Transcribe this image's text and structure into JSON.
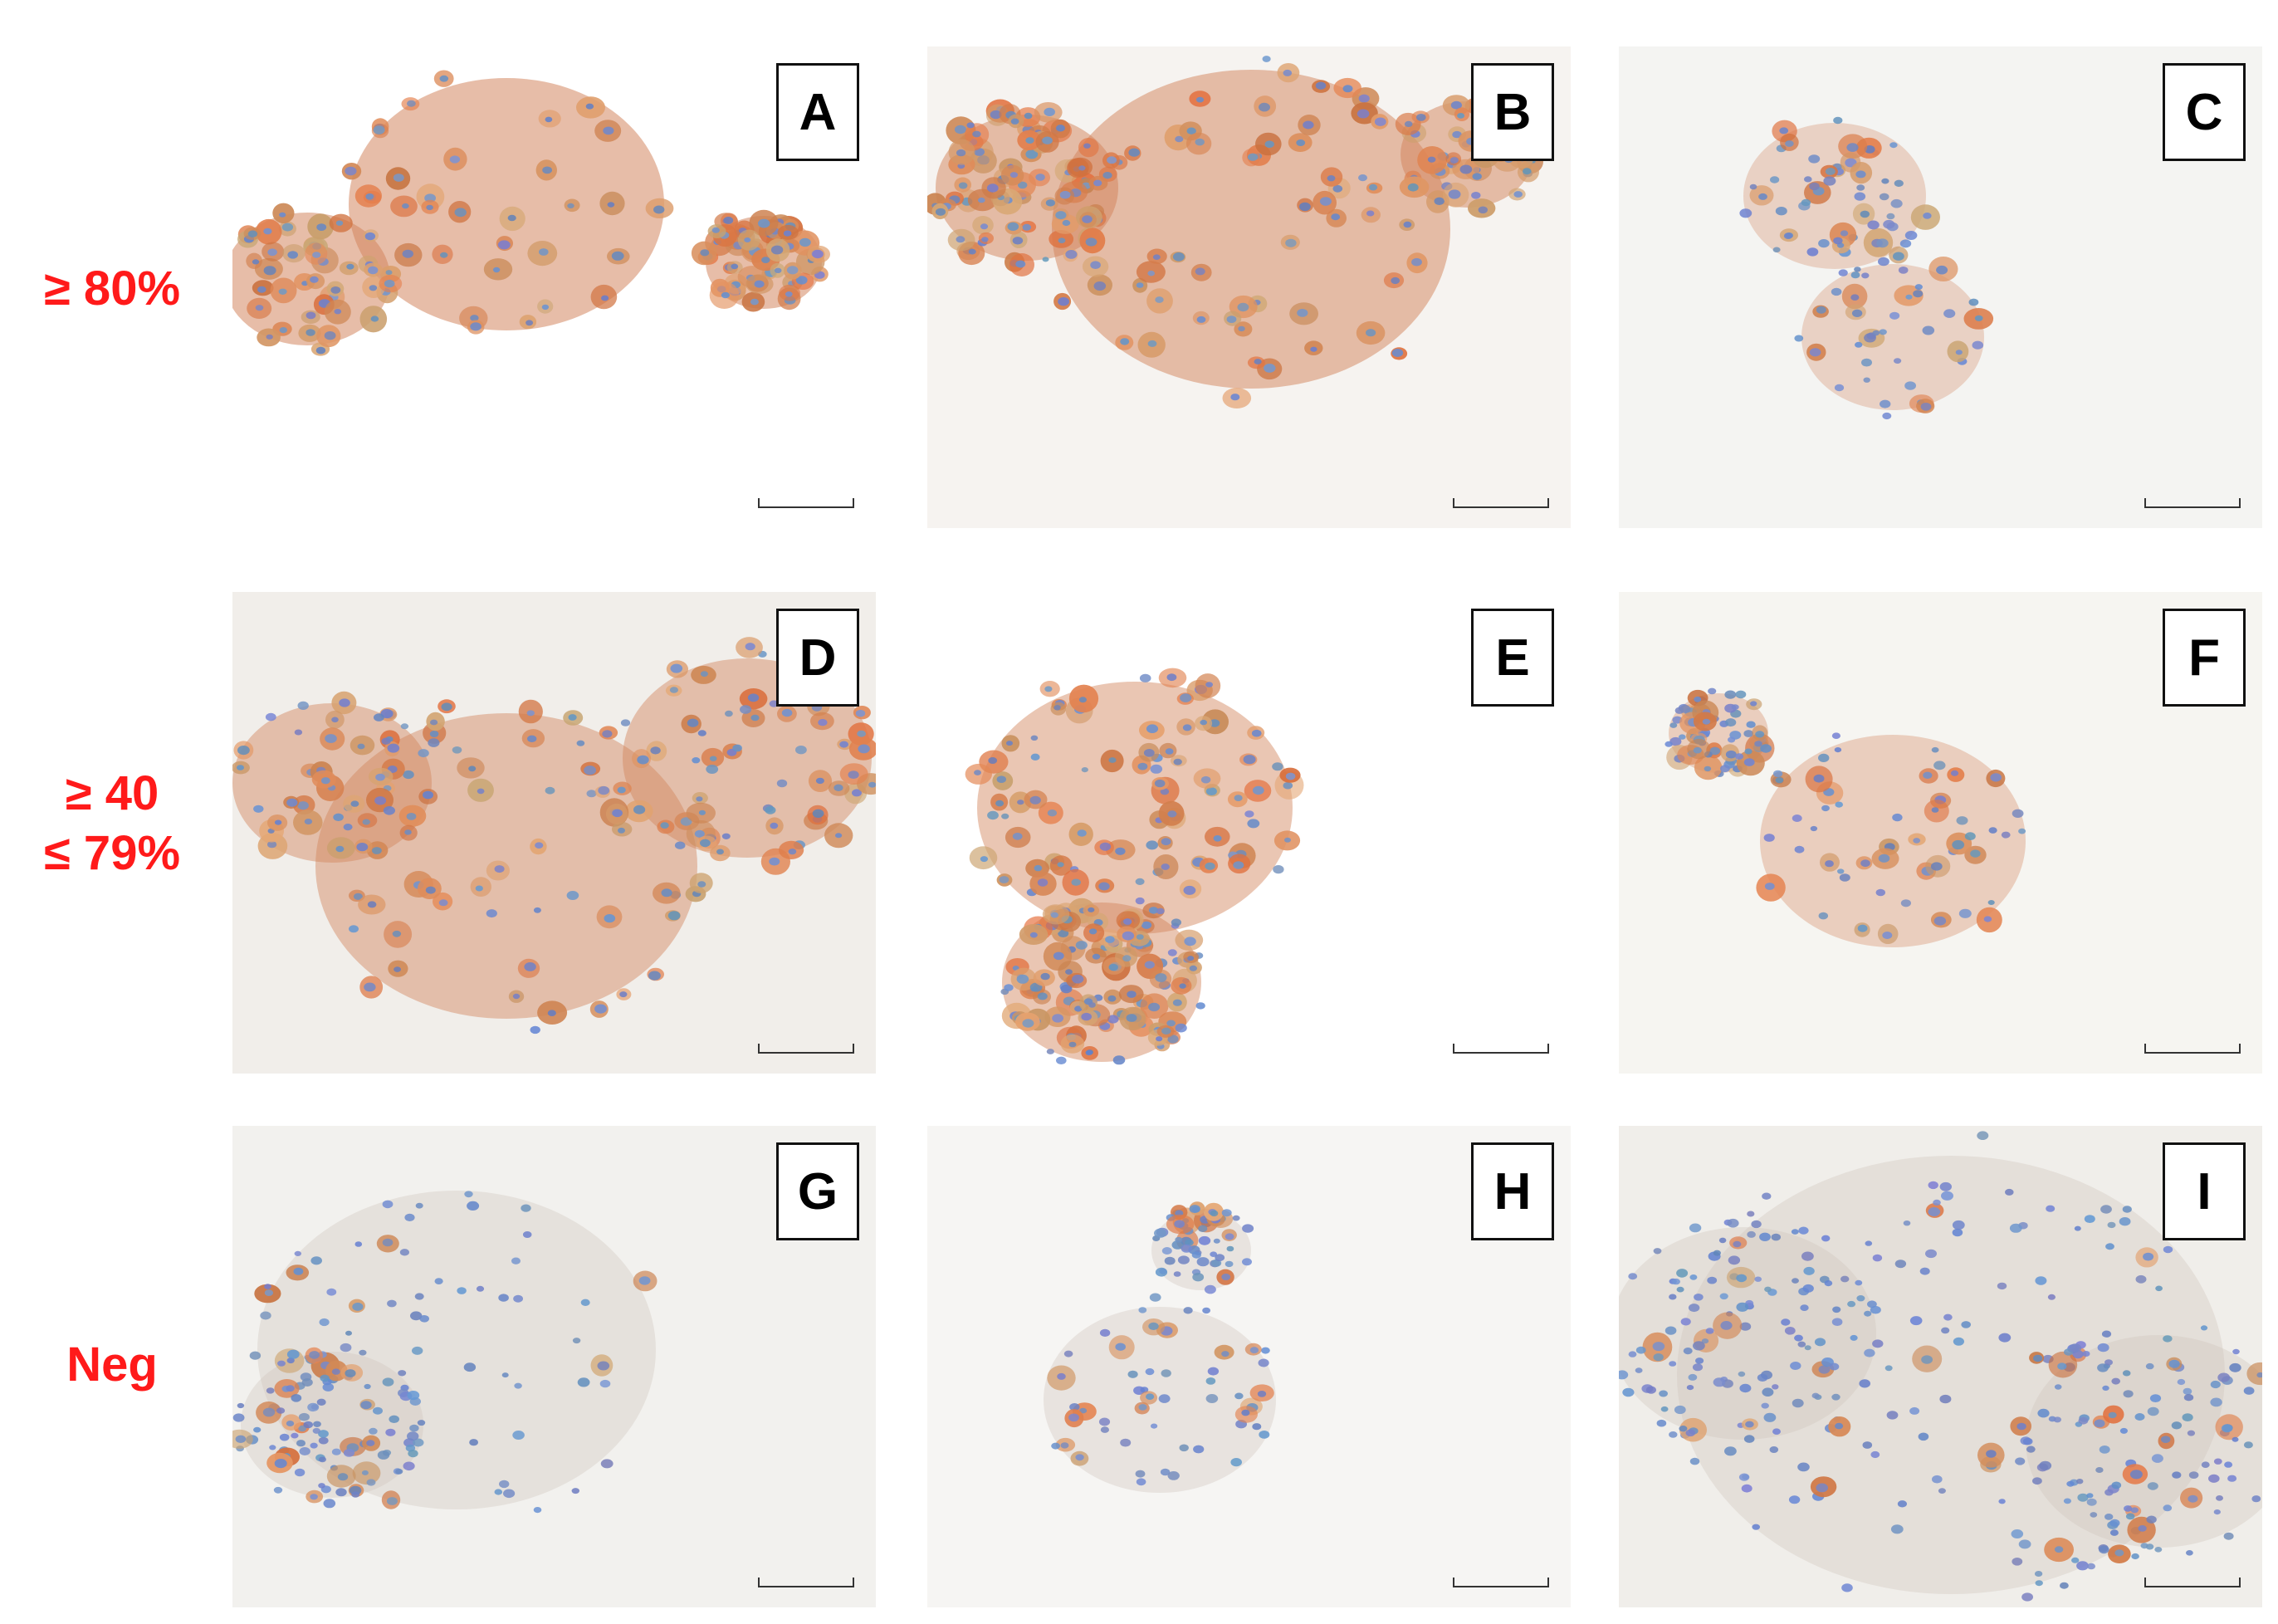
{
  "row_labels": {
    "row1": {
      "line1": "≥ 80%"
    },
    "row2": {
      "line1": "≥ 40",
      "line2": "≤ 79%"
    },
    "row3": {
      "line1": "Neg"
    }
  },
  "panels": [
    {
      "letter": "A",
      "stain": "strong"
    },
    {
      "letter": "B",
      "stain": "strong"
    },
    {
      "letter": "C",
      "stain": "weak"
    },
    {
      "letter": "D",
      "stain": "moderate"
    },
    {
      "letter": "E",
      "stain": "moderate"
    },
    {
      "letter": "F",
      "stain": "weak"
    },
    {
      "letter": "G",
      "stain": "negative"
    },
    {
      "letter": "H",
      "stain": "negative"
    },
    {
      "letter": "I",
      "stain": "negative"
    }
  ],
  "colors": {
    "label_red": "#ff1a1a",
    "stain_brown": "#c8714a",
    "nucleus_blue": "#6f8fc4",
    "background": "#f7f6f3"
  }
}
